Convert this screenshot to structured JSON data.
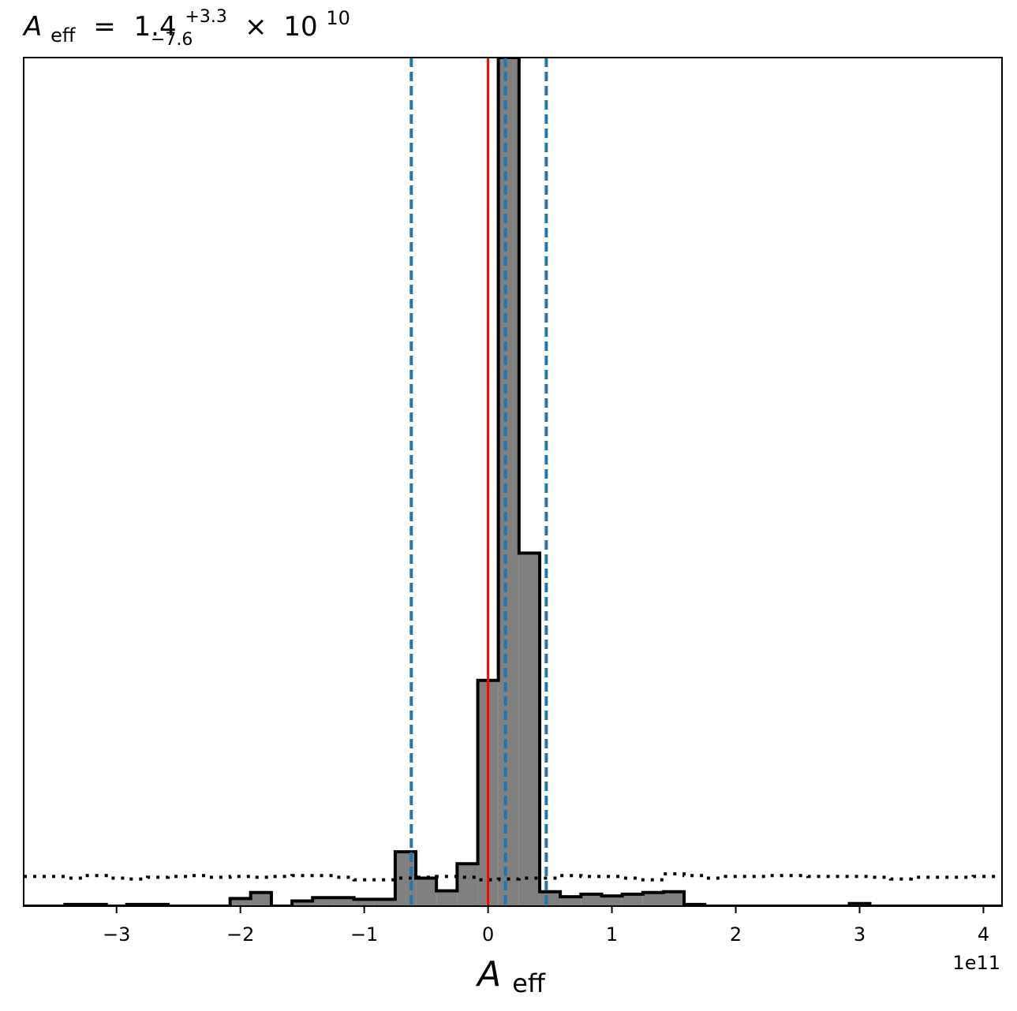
{
  "chart_data": {
    "type": "histogram",
    "title": {
      "symbol": "A",
      "subscript": "eff",
      "equals": "=",
      "median": "1.4",
      "upper_err": "+3.3",
      "lower_err": "−7.6",
      "times": "×",
      "base": "10",
      "exponent": "10"
    },
    "xlabel": {
      "symbol": "A",
      "subscript": "eff"
    },
    "x_offset_label": "1e11",
    "x_scale_factor": 100000000000.0,
    "xlim": [
      -3.75,
      4.15
    ],
    "ylim": [
      0,
      1.0
    ],
    "y_ticks_visible": false,
    "x_ticks": [
      {
        "value": -3,
        "label": "−3"
      },
      {
        "value": -2,
        "label": "−2"
      },
      {
        "value": -1,
        "label": "−1"
      },
      {
        "value": 0,
        "label": "0"
      },
      {
        "value": 1,
        "label": "1"
      },
      {
        "value": 2,
        "label": "2"
      },
      {
        "value": 3,
        "label": "3"
      },
      {
        "value": 4,
        "label": "4"
      }
    ],
    "histogram": {
      "bin_edges": [
        -3.75,
        -3.583,
        -3.417,
        -3.25,
        -3.083,
        -2.917,
        -2.75,
        -2.583,
        -2.417,
        -2.25,
        -2.083,
        -1.917,
        -1.75,
        -1.583,
        -1.417,
        -1.25,
        -1.083,
        -0.917,
        -0.75,
        -0.583,
        -0.417,
        -0.25,
        -0.083,
        0.083,
        0.25,
        0.417,
        0.583,
        0.75,
        0.917,
        1.083,
        1.25,
        1.417,
        1.583,
        1.75,
        1.917,
        2.083,
        2.25,
        2.417,
        2.583,
        2.75,
        2.917,
        3.083,
        3.25,
        3.417,
        3.583,
        3.75,
        3.917,
        4.083,
        4.15
      ],
      "counts": [
        0,
        0,
        0.002,
        0.002,
        0,
        0.002,
        0.002,
        0,
        0,
        0,
        0.009,
        0.016,
        0,
        0.006,
        0.01,
        0.01,
        0.008,
        0.008,
        0.064,
        0.033,
        0.018,
        0.05,
        0.266,
        1.0,
        0.416,
        0.017,
        0.011,
        0.014,
        0.012,
        0.014,
        0.016,
        0.017,
        0.002,
        0,
        0,
        0,
        0,
        0,
        0,
        0,
        0.003,
        0,
        0,
        0,
        0,
        0,
        0,
        0
      ],
      "fill_color": "#808080",
      "edge_color": "#000000"
    },
    "prior_dotted": [
      0.035,
      0.035,
      0.033,
      0.036,
      0.033,
      0.032,
      0.034,
      0.035,
      0.036,
      0.034,
      0.035,
      0.034,
      0.035,
      0.036,
      0.036,
      0.034,
      0.031,
      0.031,
      0.033,
      0.034,
      0.035,
      0.034,
      0.031,
      0.032,
      0.033,
      0.033,
      0.036,
      0.035,
      0.035,
      0.033,
      0.031,
      0.038,
      0.036,
      0.033,
      0.035,
      0.035,
      0.036,
      0.036,
      0.035,
      0.035,
      0.035,
      0.034,
      0.032,
      0.034,
      0.034,
      0.034,
      0.035,
      0.035
    ],
    "prior_color": "#000000",
    "vertical_lines": [
      {
        "x": 0.0,
        "color": "#ff0000",
        "style": "solid"
      },
      {
        "x": -0.62,
        "color": "#1f77b4",
        "style": "dashed"
      },
      {
        "x": 0.14,
        "color": "#1f77b4",
        "style": "dashed"
      },
      {
        "x": 0.47,
        "color": "#1f77b4",
        "style": "dashed"
      }
    ],
    "legend": "none",
    "grid": false
  }
}
